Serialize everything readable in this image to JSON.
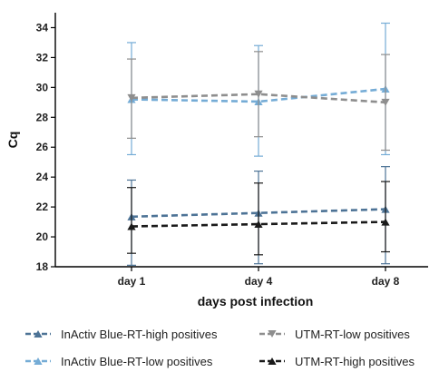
{
  "chart_data": {
    "type": "line",
    "title": "",
    "xlabel": "days post infection",
    "ylabel": "Cq",
    "categories": [
      "day 1",
      "day 4",
      "day 8"
    ],
    "ylim": [
      18,
      35
    ],
    "yticks": [
      18,
      20,
      22,
      24,
      26,
      28,
      30,
      32,
      34
    ],
    "grid": false,
    "legend_position": "bottom",
    "line_style": "dashed",
    "series": [
      {
        "name": "InActiv Blue-RT-high positives",
        "color": "#4d7396",
        "marker": "triangle-up",
        "values": [
          21.35,
          21.6,
          21.85
        ],
        "error_upper": [
          23.8,
          24.4,
          24.7
        ],
        "error_lower": [
          18.1,
          18.2,
          18.2
        ]
      },
      {
        "name": "InActiv Blue-RT-low positives",
        "color": "#75acd6",
        "marker": "triangle-up",
        "values": [
          29.2,
          29.05,
          29.9
        ],
        "error_upper": [
          33.0,
          32.8,
          34.3
        ],
        "error_lower": [
          25.5,
          25.4,
          25.5
        ]
      },
      {
        "name": "UTM-RT-low positives",
        "color": "#8e8e8e",
        "marker": "triangle-down",
        "values": [
          29.3,
          29.55,
          29.0
        ],
        "error_upper": [
          31.9,
          32.4,
          32.2
        ],
        "error_lower": [
          26.6,
          26.7,
          25.8
        ]
      },
      {
        "name": "UTM-RT-high positives",
        "color": "#1a1a1a",
        "marker": "triangle-up",
        "values": [
          20.7,
          20.85,
          21.0
        ],
        "error_upper": [
          23.3,
          23.6,
          23.7
        ],
        "error_lower": [
          18.9,
          18.8,
          19.0
        ]
      }
    ]
  }
}
